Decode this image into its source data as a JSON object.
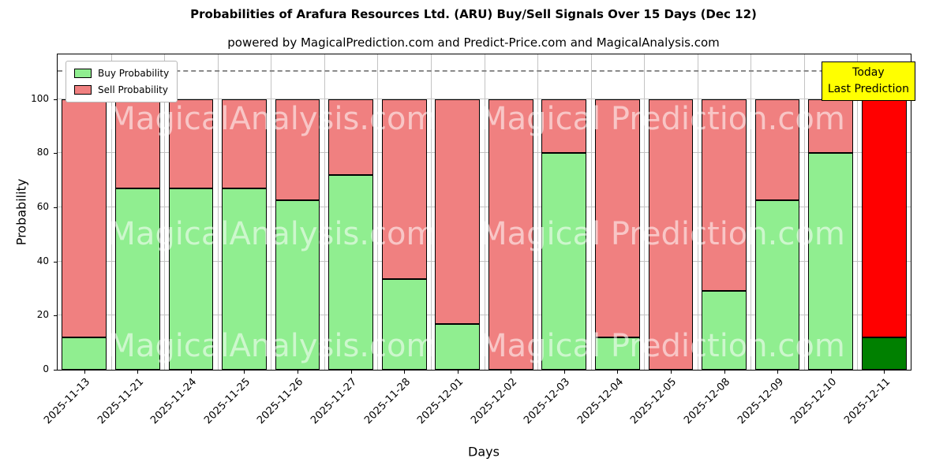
{
  "title": "Probabilities of Arafura Resources Ltd. (ARU) Buy/Sell Signals Over 15 Days (Dec 12)",
  "subtitle": "powered by MagicalPrediction.com and Predict-Price.com and MagicalAnalysis.com",
  "legend": [
    {
      "label": "Buy Probability",
      "color": "#90EE90"
    },
    {
      "label": "Sell Probability",
      "color": "#F08080"
    }
  ],
  "annotation": {
    "lines": [
      "Today",
      "Last Prediction"
    ],
    "bg_color": "#FFFF00"
  },
  "watermarks": [
    "MagicalAnalysis.com",
    "Magical Prediction.com"
  ],
  "chart_data": {
    "type": "bar",
    "stacked": true,
    "title": "Probabilities of Arafura Resources Ltd. (ARU) Buy/Sell Signals Over 15 Days (Dec 12)",
    "xlabel": "Days",
    "ylabel": "Probability",
    "categories": [
      "2025-11-13",
      "2025-11-21",
      "2025-11-24",
      "2025-11-25",
      "2025-11-26",
      "2025-11-27",
      "2025-11-28",
      "2025-12-01",
      "2025-12-02",
      "2025-12-03",
      "2025-12-04",
      "2025-12-05",
      "2025-12-08",
      "2025-12-09",
      "2025-12-10",
      "2025-12-11"
    ],
    "series": [
      {
        "name": "Buy Probability",
        "color": "#90EE90",
        "values": [
          12,
          67,
          67,
          67,
          62.5,
          72,
          33.5,
          17,
          0,
          80,
          12,
          0,
          29,
          62.5,
          80,
          12
        ]
      },
      {
        "name": "Sell Probability",
        "color": "#F08080",
        "values": [
          88,
          33,
          33,
          33,
          37.5,
          28,
          66.5,
          83,
          100,
          20,
          88,
          100,
          71,
          37.5,
          20,
          88
        ]
      }
    ],
    "last_bar_colors": {
      "buy": "#008000",
      "sell": "#FF0000"
    },
    "yticks": [
      0,
      20,
      40,
      60,
      80,
      100
    ],
    "ylim": [
      0,
      116.5
    ],
    "dashed_line_y": 110,
    "grid": true,
    "legend_position": "upper left"
  }
}
